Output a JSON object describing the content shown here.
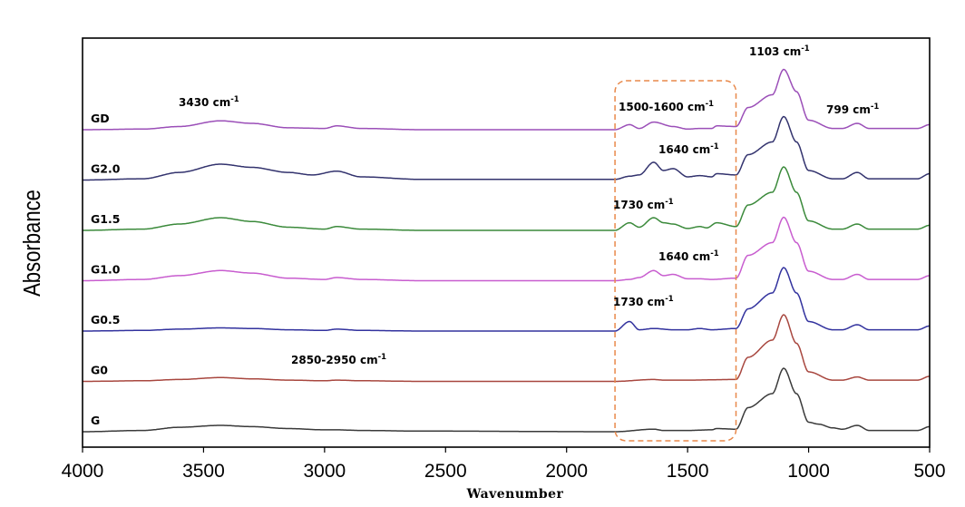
{
  "chart_data": {
    "type": "line",
    "title": "",
    "xlabel": "Wavenumber",
    "ylabel": "Absorbance",
    "xlim": [
      4000,
      500
    ],
    "x_reversed": true,
    "xticks": [
      "4000",
      "3500",
      "3000",
      "2500",
      "2000",
      "1500",
      "1000",
      "500"
    ],
    "yticks_shown": false,
    "legend": "none (series labeled on the left of each trace)",
    "grid": false,
    "highlight_box": {
      "x_from": 1800,
      "x_to": 1300,
      "style": "dashed",
      "color": "#e8884a"
    },
    "series": [
      {
        "name": "GD",
        "color": "#9b4fb8",
        "offset": 6,
        "points": [
          [
            4000,
            0
          ],
          [
            3750,
            0.01
          ],
          [
            3600,
            0.05
          ],
          [
            3430,
            0.14
          ],
          [
            3300,
            0.1
          ],
          [
            3150,
            0.03
          ],
          [
            3000,
            0.02
          ],
          [
            2950,
            0.06
          ],
          [
            2850,
            0.02
          ],
          [
            2600,
            0
          ],
          [
            1800,
            0
          ],
          [
            1740,
            0.08
          ],
          [
            1700,
            0.02
          ],
          [
            1640,
            0.12
          ],
          [
            1560,
            0.05
          ],
          [
            1500,
            0.01
          ],
          [
            1450,
            0.02
          ],
          [
            1400,
            0.02
          ],
          [
            1380,
            0.06
          ],
          [
            1300,
            0.05
          ],
          [
            1250,
            0.35
          ],
          [
            1150,
            0.55
          ],
          [
            1103,
            0.95
          ],
          [
            1050,
            0.6
          ],
          [
            1000,
            0.15
          ],
          [
            900,
            0.02
          ],
          [
            860,
            0.02
          ],
          [
            799,
            0.1
          ],
          [
            750,
            0.02
          ],
          [
            550,
            0.02
          ],
          [
            500,
            0.08
          ]
        ]
      },
      {
        "name": "G2.0",
        "color": "#33336e",
        "offset": 5,
        "points": [
          [
            4000,
            0
          ],
          [
            3750,
            0.02
          ],
          [
            3600,
            0.12
          ],
          [
            3430,
            0.25
          ],
          [
            3300,
            0.2
          ],
          [
            3150,
            0.12
          ],
          [
            3050,
            0.08
          ],
          [
            2950,
            0.14
          ],
          [
            2850,
            0.05
          ],
          [
            2600,
            0.01
          ],
          [
            1800,
            0.01
          ],
          [
            1740,
            0.06
          ],
          [
            1700,
            0.08
          ],
          [
            1640,
            0.28
          ],
          [
            1600,
            0.15
          ],
          [
            1560,
            0.18
          ],
          [
            1500,
            0.05
          ],
          [
            1450,
            0.07
          ],
          [
            1400,
            0.05
          ],
          [
            1380,
            0.1
          ],
          [
            1300,
            0.08
          ],
          [
            1250,
            0.4
          ],
          [
            1150,
            0.6
          ],
          [
            1103,
            1.0
          ],
          [
            1050,
            0.6
          ],
          [
            1000,
            0.15
          ],
          [
            900,
            0.02
          ],
          [
            860,
            0.02
          ],
          [
            799,
            0.12
          ],
          [
            750,
            0.02
          ],
          [
            550,
            0.02
          ],
          [
            500,
            0.1
          ]
        ]
      },
      {
        "name": "G1.5",
        "color": "#3b8a3b",
        "offset": 4,
        "points": [
          [
            4000,
            0
          ],
          [
            3750,
            0.02
          ],
          [
            3600,
            0.1
          ],
          [
            3430,
            0.2
          ],
          [
            3300,
            0.14
          ],
          [
            3150,
            0.05
          ],
          [
            3000,
            0.02
          ],
          [
            2950,
            0.06
          ],
          [
            2850,
            0.02
          ],
          [
            2600,
            0
          ],
          [
            1800,
            0
          ],
          [
            1740,
            0.12
          ],
          [
            1700,
            0.05
          ],
          [
            1640,
            0.2
          ],
          [
            1600,
            0.12
          ],
          [
            1560,
            0.1
          ],
          [
            1500,
            0.03
          ],
          [
            1450,
            0.06
          ],
          [
            1420,
            0.04
          ],
          [
            1380,
            0.12
          ],
          [
            1300,
            0.06
          ],
          [
            1250,
            0.4
          ],
          [
            1150,
            0.6
          ],
          [
            1103,
            1.0
          ],
          [
            1050,
            0.6
          ],
          [
            1000,
            0.15
          ],
          [
            900,
            0.02
          ],
          [
            860,
            0.02
          ],
          [
            799,
            0.1
          ],
          [
            750,
            0.02
          ],
          [
            550,
            0.02
          ],
          [
            500,
            0.08
          ]
        ]
      },
      {
        "name": "G1.0",
        "color": "#c85dcf",
        "offset": 3,
        "points": [
          [
            4000,
            0
          ],
          [
            3750,
            0.02
          ],
          [
            3600,
            0.08
          ],
          [
            3430,
            0.16
          ],
          [
            3300,
            0.12
          ],
          [
            3150,
            0.04
          ],
          [
            3000,
            0.02
          ],
          [
            2950,
            0.05
          ],
          [
            2850,
            0.02
          ],
          [
            2600,
            0
          ],
          [
            1800,
            0
          ],
          [
            1740,
            0.02
          ],
          [
            1700,
            0.05
          ],
          [
            1640,
            0.16
          ],
          [
            1600,
            0.08
          ],
          [
            1560,
            0.1
          ],
          [
            1500,
            0.03
          ],
          [
            1450,
            0.03
          ],
          [
            1400,
            0.02
          ],
          [
            1300,
            0.04
          ],
          [
            1250,
            0.4
          ],
          [
            1150,
            0.6
          ],
          [
            1103,
            1.0
          ],
          [
            1050,
            0.6
          ],
          [
            1000,
            0.15
          ],
          [
            900,
            0.02
          ],
          [
            860,
            0.02
          ],
          [
            799,
            0.1
          ],
          [
            750,
            0.02
          ],
          [
            550,
            0.02
          ],
          [
            500,
            0.08
          ]
        ]
      },
      {
        "name": "G0.5",
        "color": "#32329e",
        "offset": 2,
        "points": [
          [
            4000,
            0
          ],
          [
            3750,
            0.01
          ],
          [
            3600,
            0.03
          ],
          [
            3430,
            0.05
          ],
          [
            3300,
            0.04
          ],
          [
            3150,
            0.02
          ],
          [
            3000,
            0.01
          ],
          [
            2950,
            0.03
          ],
          [
            2850,
            0.01
          ],
          [
            2600,
            0
          ],
          [
            1800,
            0
          ],
          [
            1740,
            0.15
          ],
          [
            1700,
            0.02
          ],
          [
            1640,
            0.04
          ],
          [
            1560,
            0.02
          ],
          [
            1500,
            0.02
          ],
          [
            1450,
            0.04
          ],
          [
            1400,
            0.02
          ],
          [
            1300,
            0.04
          ],
          [
            1250,
            0.35
          ],
          [
            1150,
            0.6
          ],
          [
            1103,
            1.0
          ],
          [
            1050,
            0.6
          ],
          [
            1000,
            0.15
          ],
          [
            900,
            0.02
          ],
          [
            860,
            0.02
          ],
          [
            799,
            0.1
          ],
          [
            750,
            0.02
          ],
          [
            550,
            0.02
          ],
          [
            500,
            0.08
          ]
        ]
      },
      {
        "name": "G0",
        "color": "#a8473f",
        "offset": 1,
        "points": [
          [
            4000,
            0
          ],
          [
            3750,
            0.01
          ],
          [
            3600,
            0.03
          ],
          [
            3430,
            0.06
          ],
          [
            3300,
            0.04
          ],
          [
            3150,
            0.02
          ],
          [
            3000,
            0.01
          ],
          [
            2950,
            0.02
          ],
          [
            2850,
            0.01
          ],
          [
            2600,
            0
          ],
          [
            1800,
            0
          ],
          [
            1640,
            0.03
          ],
          [
            1600,
            0.02
          ],
          [
            1500,
            0.02
          ],
          [
            1300,
            0.03
          ],
          [
            1250,
            0.38
          ],
          [
            1150,
            0.65
          ],
          [
            1103,
            1.05
          ],
          [
            1050,
            0.6
          ],
          [
            1000,
            0.15
          ],
          [
            900,
            0.02
          ],
          [
            860,
            0.02
          ],
          [
            799,
            0.07
          ],
          [
            750,
            0.02
          ],
          [
            550,
            0.02
          ],
          [
            500,
            0.08
          ]
        ]
      },
      {
        "name": "G",
        "color": "#3a3a3a",
        "offset": 0,
        "points": [
          [
            4000,
            0
          ],
          [
            3750,
            0.02
          ],
          [
            3600,
            0.07
          ],
          [
            3430,
            0.1
          ],
          [
            3300,
            0.08
          ],
          [
            3150,
            0.05
          ],
          [
            3000,
            0.03
          ],
          [
            2950,
            0.03
          ],
          [
            2850,
            0.02
          ],
          [
            2600,
            0.01
          ],
          [
            1800,
            0
          ],
          [
            1640,
            0.04
          ],
          [
            1600,
            0.02
          ],
          [
            1500,
            0.02
          ],
          [
            1400,
            0.03
          ],
          [
            1380,
            0.05
          ],
          [
            1300,
            0.04
          ],
          [
            1250,
            0.38
          ],
          [
            1150,
            0.6
          ],
          [
            1103,
            1.0
          ],
          [
            1050,
            0.6
          ],
          [
            1000,
            0.15
          ],
          [
            960,
            0.12
          ],
          [
            900,
            0.06
          ],
          [
            860,
            0.04
          ],
          [
            799,
            0.1
          ],
          [
            750,
            0.02
          ],
          [
            550,
            0.02
          ],
          [
            500,
            0.08
          ]
        ]
      }
    ],
    "annotations": [
      {
        "text": "3430 cm",
        "sup": "-1"
      },
      {
        "text": "1500-1600 cm",
        "sup": "-1"
      },
      {
        "text": "1103 cm",
        "sup": "-1"
      },
      {
        "text": "799 cm",
        "sup": "-1"
      },
      {
        "text": "1640 cm",
        "sup": "-1"
      },
      {
        "text": "1730 cm",
        "sup": "-1"
      },
      {
        "text": "1640 cm",
        "sup": "-1"
      },
      {
        "text": "1730 cm",
        "sup": "-1"
      },
      {
        "text": "2850-2950 cm",
        "sup": "-1"
      }
    ]
  }
}
